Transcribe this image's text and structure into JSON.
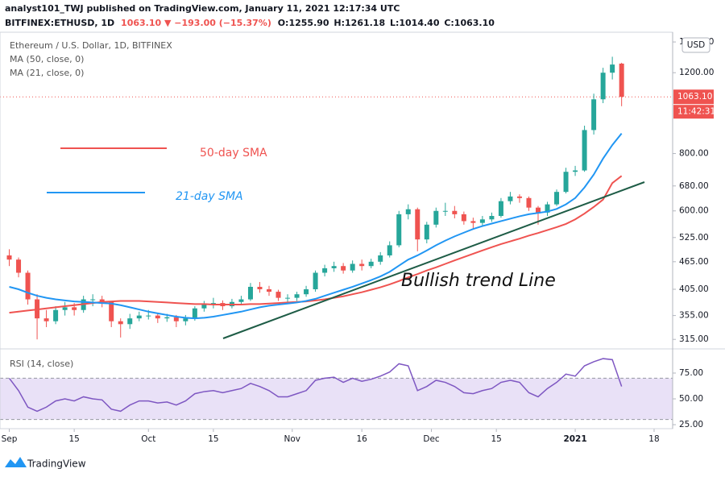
{
  "header": {
    "published": "analyst101_TWJ published on TradingView.com, January 11, 2021 12:17:34 UTC",
    "symbol": "BITFINEX:ETHUSD, 1D",
    "change": "1063.10 ▼ −193.00 (−15.37%)",
    "open": "O:1255.90",
    "high": "H:1261.18",
    "low": "L:1014.40",
    "close": "C:1063.10"
  },
  "chart_data": [
    {
      "type": "candlestick",
      "title": "Ethereum / U.S. Dollar, 1D, BITFINEX",
      "currency": "USD",
      "log_scale": true,
      "up_color": "#26a69a",
      "down_color": "#ef5350",
      "xlim": [
        -2,
        143
      ],
      "xticks": [
        {
          "value": 0,
          "label": "Sep"
        },
        {
          "value": 14,
          "label": "15"
        },
        {
          "value": 30,
          "label": "Oct"
        },
        {
          "value": 44,
          "label": "15"
        },
        {
          "value": 61,
          "label": "Nov"
        },
        {
          "value": 76,
          "label": "16"
        },
        {
          "value": 91,
          "label": "Dec"
        },
        {
          "value": 105,
          "label": "15"
        },
        {
          "value": 122,
          "label": "2021"
        },
        {
          "value": 139,
          "label": "18"
        }
      ],
      "ylim": [
        304,
        1470
      ],
      "yticks": [
        {
          "value": 315,
          "label": "315.00"
        },
        {
          "value": 355,
          "label": "355.00"
        },
        {
          "value": 405,
          "label": "405.00"
        },
        {
          "value": 465,
          "label": "465.00"
        },
        {
          "value": 525,
          "label": "525.00"
        },
        {
          "value": 600,
          "label": "600.00"
        },
        {
          "value": 680,
          "label": "680.00"
        },
        {
          "value": 800,
          "label": "800.00"
        },
        {
          "value": 1200,
          "label": "1200.00"
        },
        {
          "value": 1400,
          "label": "1400.00"
        }
      ],
      "last_price": {
        "value": 1063.1,
        "label": "1063.10"
      },
      "countdown": "11:42:31",
      "x": [
        0,
        2,
        4,
        6,
        8,
        10,
        12,
        14,
        16,
        18,
        20,
        22,
        24,
        26,
        28,
        30,
        32,
        34,
        36,
        38,
        40,
        42,
        44,
        46,
        48,
        50,
        52,
        54,
        56,
        58,
        60,
        62,
        64,
        66,
        68,
        70,
        72,
        74,
        76,
        78,
        80,
        82,
        84,
        86,
        88,
        90,
        92,
        94,
        96,
        98,
        100,
        102,
        104,
        106,
        108,
        110,
        112,
        114,
        116,
        118,
        120,
        122,
        124,
        126,
        128,
        130,
        132
      ],
      "candles": [
        [
          480,
          495,
          455,
          470
        ],
        [
          470,
          475,
          430,
          440
        ],
        [
          440,
          445,
          375,
          385
        ],
        [
          385,
          395,
          315,
          350
        ],
        [
          350,
          365,
          335,
          345
        ],
        [
          345,
          372,
          340,
          365
        ],
        [
          365,
          380,
          355,
          370
        ],
        [
          370,
          378,
          355,
          365
        ],
        [
          365,
          392,
          360,
          385
        ],
        [
          385,
          395,
          372,
          385
        ],
        [
          385,
          392,
          370,
          380
        ],
        [
          380,
          382,
          335,
          345
        ],
        [
          345,
          350,
          318,
          340
        ],
        [
          340,
          358,
          332,
          350
        ],
        [
          350,
          362,
          345,
          355
        ],
        [
          355,
          365,
          348,
          355
        ],
        [
          355,
          360,
          342,
          350
        ],
        [
          350,
          358,
          344,
          352
        ],
        [
          352,
          356,
          335,
          345
        ],
        [
          345,
          356,
          338,
          350
        ],
        [
          350,
          372,
          346,
          368
        ],
        [
          368,
          382,
          362,
          375
        ],
        [
          375,
          388,
          368,
          378
        ],
        [
          378,
          383,
          365,
          372
        ],
        [
          372,
          386,
          368,
          380
        ],
        [
          380,
          392,
          375,
          385
        ],
        [
          385,
          418,
          382,
          410
        ],
        [
          410,
          420,
          398,
          405
        ],
        [
          405,
          412,
          392,
          400
        ],
        [
          400,
          404,
          382,
          388
        ],
        [
          388,
          395,
          380,
          388
        ],
        [
          388,
          400,
          382,
          395
        ],
        [
          395,
          412,
          390,
          405
        ],
        [
          405,
          445,
          400,
          440
        ],
        [
          440,
          458,
          432,
          450
        ],
        [
          450,
          465,
          442,
          455
        ],
        [
          455,
          462,
          438,
          445
        ],
        [
          445,
          468,
          440,
          460
        ],
        [
          460,
          470,
          445,
          455
        ],
        [
          455,
          472,
          450,
          465
        ],
        [
          465,
          488,
          458,
          480
        ],
        [
          480,
          515,
          475,
          505
        ],
        [
          505,
          600,
          500,
          590
        ],
        [
          590,
          620,
          575,
          605
        ],
        [
          605,
          610,
          490,
          520
        ],
        [
          520,
          568,
          510,
          560
        ],
        [
          560,
          610,
          552,
          600
        ],
        [
          600,
          625,
          585,
          600
        ],
        [
          600,
          615,
          578,
          590
        ],
        [
          590,
          598,
          560,
          570
        ],
        [
          570,
          580,
          548,
          565
        ],
        [
          565,
          585,
          555,
          575
        ],
        [
          575,
          595,
          568,
          585
        ],
        [
          585,
          640,
          580,
          630
        ],
        [
          630,
          660,
          620,
          645
        ],
        [
          645,
          652,
          625,
          640
        ],
        [
          640,
          645,
          600,
          610
        ],
        [
          610,
          615,
          560,
          595
        ],
        [
          595,
          628,
          585,
          620
        ],
        [
          620,
          668,
          615,
          660
        ],
        [
          660,
          745,
          655,
          730
        ],
        [
          730,
          752,
          715,
          735
        ],
        [
          735,
          920,
          730,
          900
        ],
        [
          900,
          1080,
          880,
          1050
        ],
        [
          1050,
          1230,
          1030,
          1200
        ],
        [
          1200,
          1300,
          1160,
          1250
        ],
        [
          1255.9,
          1261.18,
          1014.4,
          1063.1
        ]
      ],
      "series": [
        {
          "name": "MA (50, close, 0)",
          "color": "#ef5350",
          "values": [
            360,
            362,
            364,
            366,
            368,
            370,
            372,
            374,
            376,
            378,
            380,
            381,
            382,
            382,
            382,
            381,
            380,
            379,
            378,
            377,
            376,
            376,
            375,
            375,
            375,
            375,
            376,
            376,
            377,
            378,
            379,
            380,
            381,
            383,
            385,
            388,
            391,
            395,
            399,
            404,
            409,
            415,
            422,
            430,
            437,
            445,
            452,
            460,
            468,
            476,
            484,
            492,
            500,
            508,
            515,
            522,
            530,
            537,
            545,
            553,
            562,
            575,
            592,
            612,
            635,
            690,
            715
          ]
        },
        {
          "name": "MA (21, close, 0)",
          "color": "#2196f3",
          "values": [
            410,
            405,
            398,
            392,
            388,
            385,
            383,
            381,
            380,
            379,
            378,
            377,
            374,
            370,
            366,
            362,
            359,
            356,
            353,
            351,
            350,
            351,
            353,
            356,
            359,
            362,
            366,
            370,
            373,
            375,
            377,
            379,
            382,
            386,
            392,
            398,
            404,
            410,
            417,
            424,
            432,
            442,
            456,
            470,
            480,
            492,
            505,
            517,
            528,
            538,
            548,
            556,
            563,
            570,
            577,
            584,
            590,
            594,
            598,
            606,
            620,
            640,
            675,
            720,
            780,
            835,
            885
          ]
        }
      ],
      "annotations": {
        "sma50": "50-day SMA",
        "sma21": "21-day SMA",
        "trend": "Bullish trend Line"
      }
    },
    {
      "type": "line",
      "title": "RSI (14, close)",
      "color": "#7e57c2",
      "band": [
        30,
        70
      ],
      "band_color": "#e9e1f7",
      "ylim": [
        22.7,
        95.3
      ],
      "yticks": [
        {
          "value": 25,
          "label": "25.00"
        },
        {
          "value": 50,
          "label": "50.00"
        },
        {
          "value": 75,
          "label": "75.00"
        }
      ],
      "values": [
        70,
        58,
        42,
        38,
        42,
        48,
        50,
        48,
        52,
        50,
        49,
        40,
        38,
        44,
        48,
        48,
        46,
        47,
        44,
        48,
        55,
        57,
        58,
        56,
        58,
        60,
        65,
        62,
        58,
        52,
        52,
        55,
        58,
        68,
        70,
        71,
        66,
        70,
        67,
        69,
        72,
        76,
        84,
        82,
        58,
        62,
        68,
        66,
        62,
        56,
        55,
        58,
        60,
        66,
        68,
        66,
        56,
        52,
        60,
        66,
        74,
        72,
        82,
        86,
        89,
        88,
        62
      ]
    }
  ],
  "footer": {
    "brand": "TradingView"
  }
}
